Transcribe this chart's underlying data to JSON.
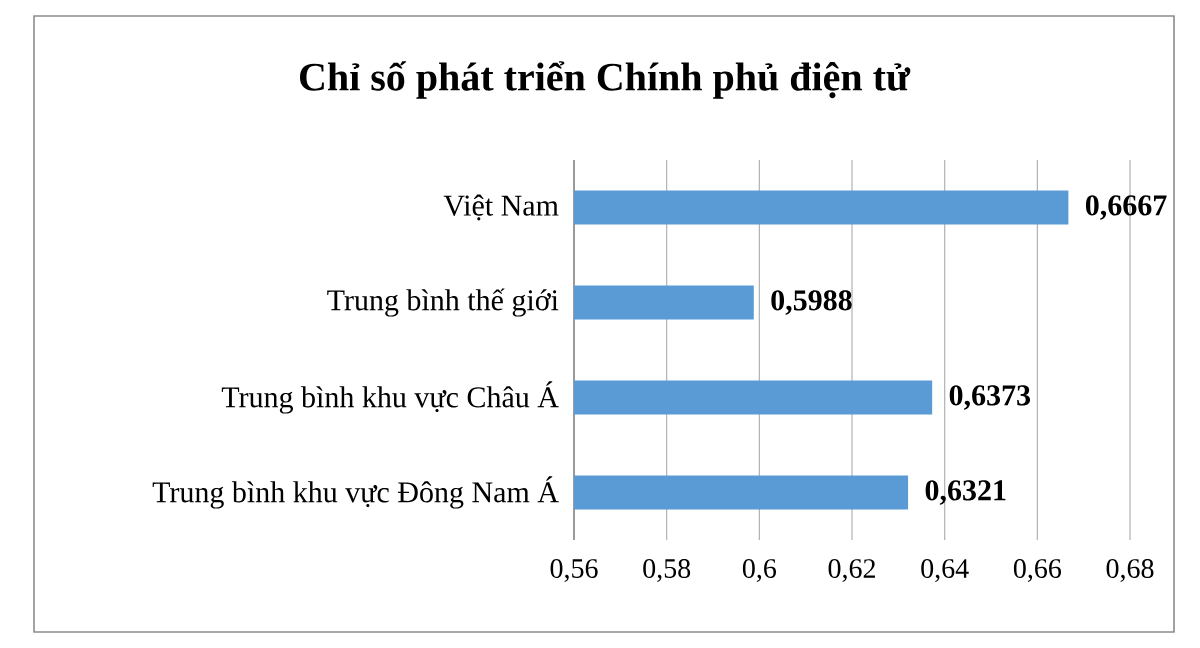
{
  "chart_data": {
    "type": "bar",
    "orientation": "horizontal",
    "title": "Chỉ số phát triển Chính phủ điện tử",
    "categories": [
      "Việt Nam",
      "Trung bình thế giới",
      "Trung bình khu vực Châu Á",
      "Trung bình khu vực Đông Nam Á"
    ],
    "values": [
      0.6667,
      0.5988,
      0.6373,
      0.6321
    ],
    "value_labels": [
      "0,6667",
      "0,5988",
      "0,6373",
      "0,6321"
    ],
    "color": "#5b9bd5",
    "xlim": [
      0.56,
      0.68
    ],
    "xticks": [
      {
        "value": 0.56,
        "label": "0,56"
      },
      {
        "value": 0.58,
        "label": "0,58"
      },
      {
        "value": 0.6,
        "label": "0,6"
      },
      {
        "value": 0.62,
        "label": "0,62"
      },
      {
        "value": 0.64,
        "label": "0,64"
      },
      {
        "value": 0.66,
        "label": "0,66"
      },
      {
        "value": 0.68,
        "label": "0,68"
      }
    ],
    "grid": "x"
  }
}
